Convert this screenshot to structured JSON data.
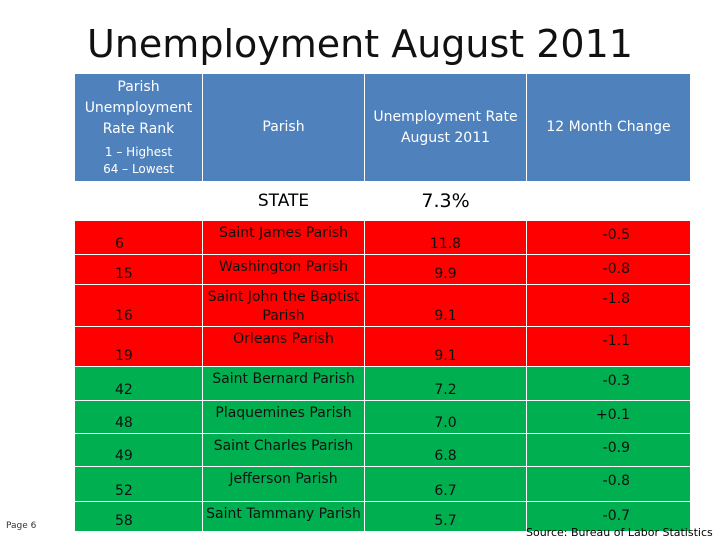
{
  "title": "Unemployment August 2011",
  "headers": {
    "rank": "Parish Unemployment Rate Rank",
    "rank_note_1": "1 – Highest",
    "rank_note_2": "64 – Lowest",
    "parish": "Parish",
    "rate": "Unemployment Rate August 2011",
    "change": "12 Month Change"
  },
  "state": {
    "label": "STATE",
    "rate": "7.3%"
  },
  "rows": [
    {
      "rank": "6",
      "parish": "Saint James Parish",
      "rate": "11.8",
      "change": "-0.5",
      "status": "red"
    },
    {
      "rank": "15",
      "parish": "Washington Parish",
      "rate": "9.9",
      "change": "-0.8",
      "status": "red"
    },
    {
      "rank": "16",
      "parish": "Saint John the Baptist Parish",
      "rate": "9.1",
      "change": "-1.8",
      "status": "red"
    },
    {
      "rank": "19",
      "parish": "Orleans Parish",
      "rate": "9.1",
      "change": "-1.1",
      "status": "red"
    },
    {
      "rank": "42",
      "parish": "Saint Bernard Parish",
      "rate": "7.2",
      "change": "-0.3",
      "status": "green"
    },
    {
      "rank": "48",
      "parish": "Plaquemines Parish",
      "rate": "7.0",
      "change": "+0.1",
      "status": "green"
    },
    {
      "rank": "49",
      "parish": "Saint Charles Parish",
      "rate": "6.8",
      "change": "-0.9",
      "status": "green"
    },
    {
      "rank": "52",
      "parish": "Jefferson Parish",
      "rate": "6.7",
      "change": "-0.8",
      "status": "green"
    },
    {
      "rank": "58",
      "parish": "Saint Tammany Parish",
      "rate": "5.7",
      "change": "-0.7",
      "status": "green"
    }
  ],
  "colors": {
    "header": "#4f81bd",
    "red": "#ff0000",
    "green": "#00b050"
  },
  "page_label": "Page 6",
  "source": "Source: Bureau of Labor Statistics"
}
